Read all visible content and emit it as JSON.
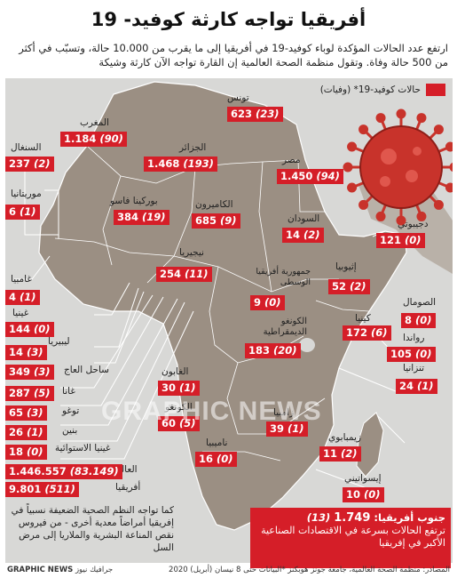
{
  "title": "أفريقيا تواجه كارثة كوفيد- 19",
  "intro": "ارتفع عدد الحالات المؤكدة لوباء كوفيد-19 في أفريقيا إلى ما يقرب من 10.000 حالة، وتسبّب في أكثر من 500 حالة وفاة. وتقول منظمة الصحة العالمية إن القارة تواجه الآن كارثة وشيكة",
  "legend": {
    "label": "حالات كوفيد-19* (وفيات)",
    "color": "#d51e28"
  },
  "colors": {
    "map_bg": "#d8d8d6",
    "land": "#9b8f83",
    "land_edge": "#ffffff",
    "accent": "#d51e28",
    "virus": "#c8332b"
  },
  "countries": [
    {
      "id": "tunisia",
      "name": "تونس",
      "cases": "623",
      "deaths": "(23)"
    },
    {
      "id": "morocco",
      "name": "المغرب",
      "cases": "1.184",
      "deaths": "(90)"
    },
    {
      "id": "algeria",
      "name": "الجزائر",
      "cases": "1.468",
      "deaths": "(193)"
    },
    {
      "id": "egypt",
      "name": "مصر",
      "cases": "1.450",
      "deaths": "(94)"
    },
    {
      "id": "senegal",
      "name": "السنغال",
      "cases": "237",
      "deaths": "(2)"
    },
    {
      "id": "mauritania",
      "name": "موريتانيا",
      "cases": "6",
      "deaths": "(1)"
    },
    {
      "id": "burkina",
      "name": "بوركينا فاسو",
      "cases": "384",
      "deaths": "(19)"
    },
    {
      "id": "cameroon",
      "name": "الكاميرون",
      "cases": "685",
      "deaths": "(9)"
    },
    {
      "id": "sudan",
      "name": "السودان",
      "cases": "14",
      "deaths": "(2)"
    },
    {
      "id": "djibouti",
      "name": "دجيبوتي",
      "cases": "121",
      "deaths": "(0)"
    },
    {
      "id": "nigeria",
      "name": "نيجيريا",
      "cases": "254",
      "deaths": "(11)"
    },
    {
      "id": "car",
      "name": "جمهورية أفريقيا الوسطى",
      "cases": "9",
      "deaths": "(0)"
    },
    {
      "id": "ethiopia",
      "name": "إثيوبيا",
      "cases": "52",
      "deaths": "(2)"
    },
    {
      "id": "gambia",
      "name": "غامبيا",
      "cases": "4",
      "deaths": "(1)"
    },
    {
      "id": "guinea",
      "name": "غينيا",
      "cases": "144",
      "deaths": "(0)"
    },
    {
      "id": "somalia",
      "name": "الصومال",
      "cases": "8",
      "deaths": "(0)"
    },
    {
      "id": "kenya",
      "name": "كينيا",
      "cases": "172",
      "deaths": "(6)"
    },
    {
      "id": "liberia",
      "name": "ليبيريا",
      "cases": "14",
      "deaths": "(3)"
    },
    {
      "id": "drc",
      "name": "الكونغو الديمقراطية",
      "cases": "183",
      "deaths": "(20)"
    },
    {
      "id": "rwanda",
      "name": "رواندا",
      "cases": "105",
      "deaths": "(0)"
    },
    {
      "id": "ivory",
      "name": "ساحل العاج",
      "cases": "349",
      "deaths": "(3)"
    },
    {
      "id": "ghana",
      "name": "غانا",
      "cases": "287",
      "deaths": "(5)"
    },
    {
      "id": "gabon",
      "name": "الغابون",
      "cases": "30",
      "deaths": "(1)"
    },
    {
      "id": "tanzania",
      "name": "تنزانيا",
      "cases": "24",
      "deaths": "(1)"
    },
    {
      "id": "togo",
      "name": "توغو",
      "cases": "65",
      "deaths": "(3)"
    },
    {
      "id": "congo",
      "name": "الكونغو",
      "cases": "60",
      "deaths": "(5)"
    },
    {
      "id": "benin",
      "name": "بنين",
      "cases": "26",
      "deaths": "(1)"
    },
    {
      "id": "zambia",
      "name": "زامبيا",
      "cases": "39",
      "deaths": "(1)"
    },
    {
      "id": "zimbabwe",
      "name": "زيمبابوي",
      "cases": "11",
      "deaths": "(2)"
    },
    {
      "id": "eqguinea",
      "name": "غينيا الاستوائية",
      "cases": "18",
      "deaths": "(0)"
    },
    {
      "id": "namibia",
      "name": "ناميبيا",
      "cases": "16",
      "deaths": "(0)"
    },
    {
      "id": "eswatini",
      "name": "إيسواتيني",
      "cases": "10",
      "deaths": "(0)"
    }
  ],
  "world": {
    "name": "العالم",
    "cases": "1.446.557",
    "deaths": "(83.149)"
  },
  "africa": {
    "name": "أفريقيا",
    "cases": "9.801",
    "deaths": "(511)"
  },
  "note": "كما تواجه النظم الصحية الضعيفة نسبياً في إفريقيا أمراضاً معدية أخرى - من فيروس نقص المناعة البشرية والملاريا إلى مرض السل",
  "south_africa": {
    "name": "جنوب أفريقيا:",
    "cases": "1.749",
    "deaths": "(13)",
    "caption": "ترتفع الحالات بسرعة في الاقتصادات الصناعية الأكبر في إفريقيا"
  },
  "source": "المصادر: منظمة الصحة العالمية، جامعة جونز هوبكنز *البيانات حتى 8 نيسان (أبريل) 2020",
  "brand": {
    "latin": "GRAPHIC NEWS",
    "arabic": "جرافيك نيوز"
  },
  "watermark": "GRAPHIC NEWS"
}
